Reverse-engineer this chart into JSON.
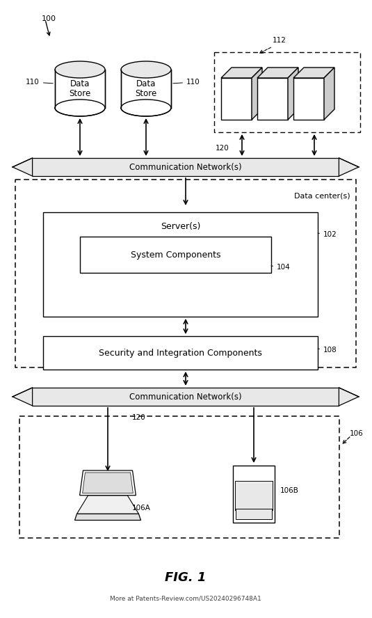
{
  "fig_width": 5.35,
  "fig_height": 8.88,
  "dpi": 100,
  "bg_color": "#ffffff",
  "label_100": "100",
  "label_110_left": "110",
  "label_110_right": "110",
  "label_112": "112",
  "label_120_top": "120",
  "label_120_bot": "120",
  "label_102": "102",
  "label_104": "104",
  "label_108": "108",
  "label_106": "106",
  "label_106A": "106A",
  "label_106B": "106B",
  "text_comm_network": "Communication Network(s)",
  "text_data_center": "Data center(s)",
  "text_servers": "Server(s)",
  "text_sys_components": "System Components",
  "text_sec_integration": "Security and Integration Components",
  "text_data_store": "Data\nStore",
  "text_fig": "FIG. 1",
  "text_watermark": "More at Patents-Review.com/US20240296748A1"
}
